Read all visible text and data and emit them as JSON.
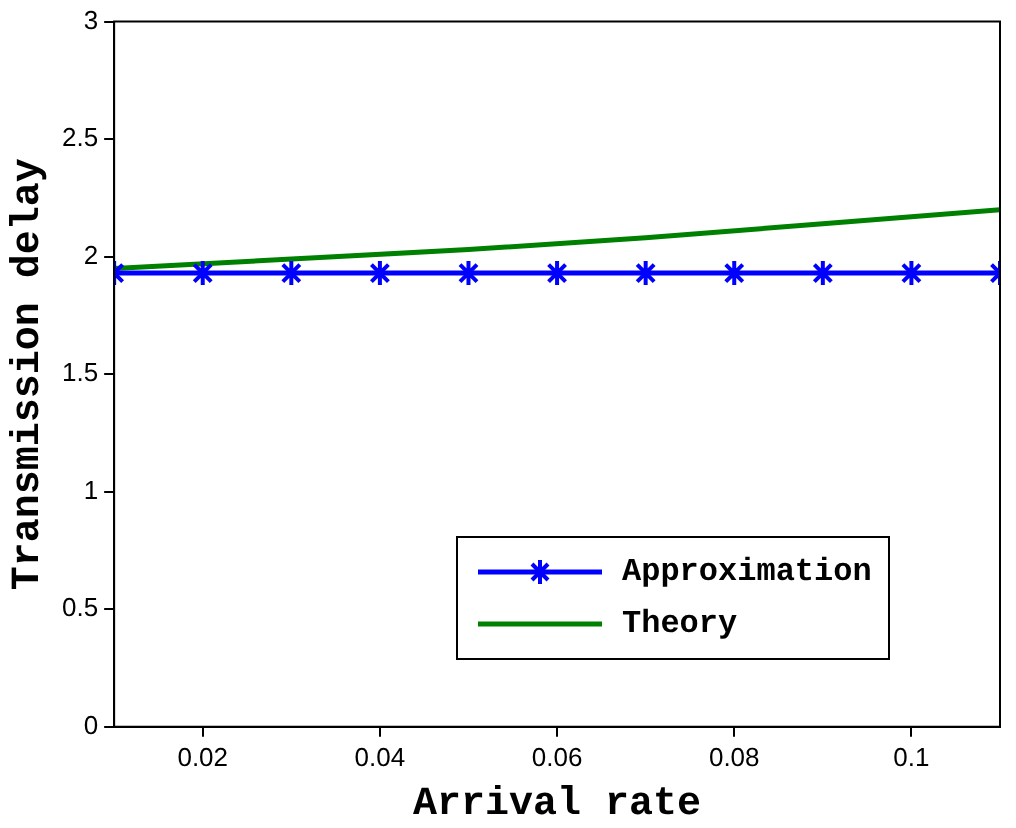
{
  "chart_data": {
    "type": "line",
    "xlabel": "Arrival rate",
    "ylabel": "Transmission delay",
    "xlim": [
      0.01,
      0.11
    ],
    "xticks": [
      0.02,
      0.04,
      0.06,
      0.08,
      0.1
    ],
    "ylim": [
      0,
      3
    ],
    "yticks": [
      0,
      0.5,
      1,
      1.5,
      2,
      2.5,
      3
    ],
    "grid": false,
    "legend": "bottom right",
    "series": [
      {
        "name": "Approximation",
        "color": "#0000ff",
        "marker": "cross",
        "x": [
          0.01,
          0.02,
          0.03,
          0.04,
          0.05,
          0.06,
          0.07,
          0.08,
          0.09,
          0.1,
          0.11
        ],
        "values": [
          1.93,
          1.93,
          1.93,
          1.93,
          1.93,
          1.93,
          1.93,
          1.93,
          1.93,
          1.93,
          1.93
        ]
      },
      {
        "name": "Theory",
        "color": "#008000",
        "marker": "none",
        "x": [
          0.01,
          0.03,
          0.05,
          0.07,
          0.09,
          0.11
        ],
        "values": [
          1.95,
          1.99,
          2.03,
          2.08,
          2.14,
          2.2
        ]
      }
    ]
  }
}
